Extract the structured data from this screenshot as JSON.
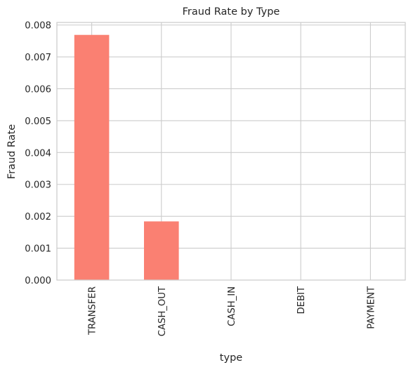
{
  "chart_data": {
    "type": "bar",
    "title": "Fraud Rate by Type",
    "xlabel": "type",
    "ylabel": "Fraud Rate",
    "categories": [
      "TRANSFER",
      "CASH_OUT",
      "CASH_IN",
      "DEBIT",
      "PAYMENT"
    ],
    "values": [
      0.00769,
      0.00184,
      0,
      0,
      0
    ],
    "ylim": [
      0,
      0.00808
    ],
    "yticks": [
      0.0,
      0.001,
      0.002,
      0.003,
      0.004,
      0.005,
      0.006,
      0.007,
      0.008
    ],
    "ytick_labels": [
      "0.000",
      "0.001",
      "0.002",
      "0.003",
      "0.004",
      "0.005",
      "0.006",
      "0.007",
      "0.008"
    ],
    "grid": true,
    "colors": {
      "bar": "#fa8072",
      "grid": "#cccccc",
      "axes_edge": "#cccccc",
      "text": "#262626"
    }
  }
}
